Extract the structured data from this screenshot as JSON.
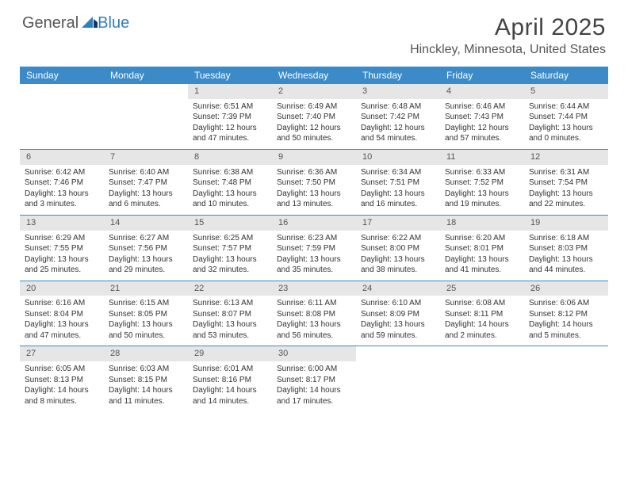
{
  "brand": {
    "part1": "General",
    "part2": "Blue"
  },
  "title": "April 2025",
  "location": "Hinckley, Minnesota, United States",
  "colors": {
    "header_bg": "#3b8bc9",
    "daynum_bg": "#e6e6e6",
    "page_bg": "#ffffff",
    "text": "#333333"
  },
  "day_names": [
    "Sunday",
    "Monday",
    "Tuesday",
    "Wednesday",
    "Thursday",
    "Friday",
    "Saturday"
  ],
  "weeks": [
    [
      {
        "n": "",
        "sr": "",
        "ss": "",
        "dl": ""
      },
      {
        "n": "",
        "sr": "",
        "ss": "",
        "dl": ""
      },
      {
        "n": "1",
        "sr": "Sunrise: 6:51 AM",
        "ss": "Sunset: 7:39 PM",
        "dl": "Daylight: 12 hours and 47 minutes."
      },
      {
        "n": "2",
        "sr": "Sunrise: 6:49 AM",
        "ss": "Sunset: 7:40 PM",
        "dl": "Daylight: 12 hours and 50 minutes."
      },
      {
        "n": "3",
        "sr": "Sunrise: 6:48 AM",
        "ss": "Sunset: 7:42 PM",
        "dl": "Daylight: 12 hours and 54 minutes."
      },
      {
        "n": "4",
        "sr": "Sunrise: 6:46 AM",
        "ss": "Sunset: 7:43 PM",
        "dl": "Daylight: 12 hours and 57 minutes."
      },
      {
        "n": "5",
        "sr": "Sunrise: 6:44 AM",
        "ss": "Sunset: 7:44 PM",
        "dl": "Daylight: 13 hours and 0 minutes."
      }
    ],
    [
      {
        "n": "6",
        "sr": "Sunrise: 6:42 AM",
        "ss": "Sunset: 7:46 PM",
        "dl": "Daylight: 13 hours and 3 minutes."
      },
      {
        "n": "7",
        "sr": "Sunrise: 6:40 AM",
        "ss": "Sunset: 7:47 PM",
        "dl": "Daylight: 13 hours and 6 minutes."
      },
      {
        "n": "8",
        "sr": "Sunrise: 6:38 AM",
        "ss": "Sunset: 7:48 PM",
        "dl": "Daylight: 13 hours and 10 minutes."
      },
      {
        "n": "9",
        "sr": "Sunrise: 6:36 AM",
        "ss": "Sunset: 7:50 PM",
        "dl": "Daylight: 13 hours and 13 minutes."
      },
      {
        "n": "10",
        "sr": "Sunrise: 6:34 AM",
        "ss": "Sunset: 7:51 PM",
        "dl": "Daylight: 13 hours and 16 minutes."
      },
      {
        "n": "11",
        "sr": "Sunrise: 6:33 AM",
        "ss": "Sunset: 7:52 PM",
        "dl": "Daylight: 13 hours and 19 minutes."
      },
      {
        "n": "12",
        "sr": "Sunrise: 6:31 AM",
        "ss": "Sunset: 7:54 PM",
        "dl": "Daylight: 13 hours and 22 minutes."
      }
    ],
    [
      {
        "n": "13",
        "sr": "Sunrise: 6:29 AM",
        "ss": "Sunset: 7:55 PM",
        "dl": "Daylight: 13 hours and 25 minutes."
      },
      {
        "n": "14",
        "sr": "Sunrise: 6:27 AM",
        "ss": "Sunset: 7:56 PM",
        "dl": "Daylight: 13 hours and 29 minutes."
      },
      {
        "n": "15",
        "sr": "Sunrise: 6:25 AM",
        "ss": "Sunset: 7:57 PM",
        "dl": "Daylight: 13 hours and 32 minutes."
      },
      {
        "n": "16",
        "sr": "Sunrise: 6:23 AM",
        "ss": "Sunset: 7:59 PM",
        "dl": "Daylight: 13 hours and 35 minutes."
      },
      {
        "n": "17",
        "sr": "Sunrise: 6:22 AM",
        "ss": "Sunset: 8:00 PM",
        "dl": "Daylight: 13 hours and 38 minutes."
      },
      {
        "n": "18",
        "sr": "Sunrise: 6:20 AM",
        "ss": "Sunset: 8:01 PM",
        "dl": "Daylight: 13 hours and 41 minutes."
      },
      {
        "n": "19",
        "sr": "Sunrise: 6:18 AM",
        "ss": "Sunset: 8:03 PM",
        "dl": "Daylight: 13 hours and 44 minutes."
      }
    ],
    [
      {
        "n": "20",
        "sr": "Sunrise: 6:16 AM",
        "ss": "Sunset: 8:04 PM",
        "dl": "Daylight: 13 hours and 47 minutes."
      },
      {
        "n": "21",
        "sr": "Sunrise: 6:15 AM",
        "ss": "Sunset: 8:05 PM",
        "dl": "Daylight: 13 hours and 50 minutes."
      },
      {
        "n": "22",
        "sr": "Sunrise: 6:13 AM",
        "ss": "Sunset: 8:07 PM",
        "dl": "Daylight: 13 hours and 53 minutes."
      },
      {
        "n": "23",
        "sr": "Sunrise: 6:11 AM",
        "ss": "Sunset: 8:08 PM",
        "dl": "Daylight: 13 hours and 56 minutes."
      },
      {
        "n": "24",
        "sr": "Sunrise: 6:10 AM",
        "ss": "Sunset: 8:09 PM",
        "dl": "Daylight: 13 hours and 59 minutes."
      },
      {
        "n": "25",
        "sr": "Sunrise: 6:08 AM",
        "ss": "Sunset: 8:11 PM",
        "dl": "Daylight: 14 hours and 2 minutes."
      },
      {
        "n": "26",
        "sr": "Sunrise: 6:06 AM",
        "ss": "Sunset: 8:12 PM",
        "dl": "Daylight: 14 hours and 5 minutes."
      }
    ],
    [
      {
        "n": "27",
        "sr": "Sunrise: 6:05 AM",
        "ss": "Sunset: 8:13 PM",
        "dl": "Daylight: 14 hours and 8 minutes."
      },
      {
        "n": "28",
        "sr": "Sunrise: 6:03 AM",
        "ss": "Sunset: 8:15 PM",
        "dl": "Daylight: 14 hours and 11 minutes."
      },
      {
        "n": "29",
        "sr": "Sunrise: 6:01 AM",
        "ss": "Sunset: 8:16 PM",
        "dl": "Daylight: 14 hours and 14 minutes."
      },
      {
        "n": "30",
        "sr": "Sunrise: 6:00 AM",
        "ss": "Sunset: 8:17 PM",
        "dl": "Daylight: 14 hours and 17 minutes."
      },
      {
        "n": "",
        "sr": "",
        "ss": "",
        "dl": ""
      },
      {
        "n": "",
        "sr": "",
        "ss": "",
        "dl": ""
      },
      {
        "n": "",
        "sr": "",
        "ss": "",
        "dl": ""
      }
    ]
  ]
}
